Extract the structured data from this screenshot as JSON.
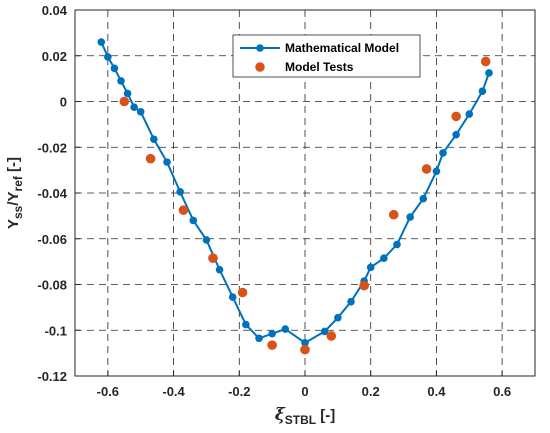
{
  "chart_data": {
    "type": "line",
    "xlabel": {
      "symbol": "ξ",
      "sub": "STBL",
      "unit": " [-]"
    },
    "ylabel": {
      "p1": "Y",
      "s1": "ss",
      "p2": "/Y",
      "s2": "ref",
      "p3": " [-]"
    },
    "xlim": [
      -0.7,
      0.7
    ],
    "ylim": [
      -0.12,
      0.04
    ],
    "xticks": [
      -0.6,
      -0.4,
      -0.2,
      0,
      0.2,
      0.4,
      0.6
    ],
    "xtick_labels": [
      "-0.6",
      "-0.4",
      "-0.2",
      "0",
      "0.2",
      "0.4",
      "0.6"
    ],
    "yticks": [
      0.04,
      0.02,
      0,
      -0.02,
      -0.04,
      -0.06,
      -0.08,
      -0.1,
      -0.12
    ],
    "ytick_labels": [
      "0.04",
      "0.02",
      "0",
      "-0.02",
      "-0.04",
      "-0.06",
      "-0.08",
      "-0.1",
      "-0.12"
    ],
    "grid": true,
    "legend_position": "top-center",
    "series": [
      {
        "name": "Mathematical Model",
        "style": "line-with-markers",
        "color": "#0072BD",
        "x": [
          -0.62,
          -0.6,
          -0.58,
          -0.56,
          -0.54,
          -0.52,
          -0.5,
          -0.46,
          -0.42,
          -0.38,
          -0.34,
          -0.3,
          -0.26,
          -0.22,
          -0.18,
          -0.14,
          -0.1,
          -0.06,
          0.0,
          0.06,
          0.1,
          0.14,
          0.18,
          0.2,
          0.24,
          0.28,
          0.32,
          0.36,
          0.4,
          0.42,
          0.46,
          0.5,
          0.54,
          0.56
        ],
        "y": [
          0.026,
          0.0195,
          0.0145,
          0.009,
          0.0035,
          -0.0025,
          -0.0045,
          -0.0165,
          -0.0265,
          -0.0395,
          -0.052,
          -0.0605,
          -0.0735,
          -0.0855,
          -0.0975,
          -0.1035,
          -0.1015,
          -0.0995,
          -0.1055,
          -0.1005,
          -0.0945,
          -0.0875,
          -0.0785,
          -0.0725,
          -0.0685,
          -0.0625,
          -0.0505,
          -0.0425,
          -0.0305,
          -0.0225,
          -0.0145,
          -0.0055,
          0.0045,
          0.0125
        ]
      },
      {
        "name": "Model Tests",
        "style": "markers",
        "color": "#D95319",
        "x": [
          -0.55,
          -0.47,
          -0.37,
          -0.28,
          -0.19,
          -0.1,
          0.0,
          0.08,
          0.18,
          0.27,
          0.37,
          0.46,
          0.55
        ],
        "y": [
          0.0,
          -0.025,
          -0.0475,
          -0.0685,
          -0.0835,
          -0.1065,
          -0.1085,
          -0.1025,
          -0.0805,
          -0.0495,
          -0.0295,
          -0.0065,
          0.0175
        ]
      }
    ]
  }
}
